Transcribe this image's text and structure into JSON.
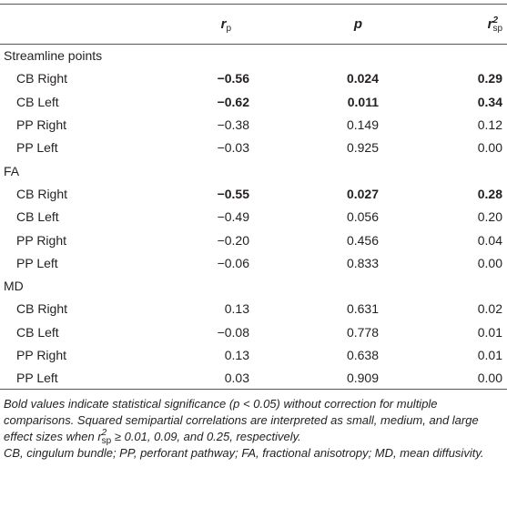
{
  "table": {
    "columns": [
      {
        "symbol": "r",
        "sub": "p"
      },
      {
        "symbol": "p"
      },
      {
        "symbol": "r",
        "sup": "2",
        "sub": "sp"
      }
    ],
    "sections": [
      {
        "label": "Streamline points",
        "rows": [
          {
            "label": "CB Right",
            "cells": [
              "−0.56",
              "0.024",
              "0.29"
            ],
            "bold": true
          },
          {
            "label": "CB Left",
            "cells": [
              "−0.62",
              "0.011",
              "0.34"
            ],
            "bold": true
          },
          {
            "label": "PP Right",
            "cells": [
              "−0.38",
              "0.149",
              "0.12"
            ],
            "bold": false
          },
          {
            "label": "PP Left",
            "cells": [
              "−0.03",
              "0.925",
              "0.00"
            ],
            "bold": false
          }
        ]
      },
      {
        "label": "FA",
        "rows": [
          {
            "label": "CB Right",
            "cells": [
              "−0.55",
              "0.027",
              "0.28"
            ],
            "bold": true
          },
          {
            "label": "CB Left",
            "cells": [
              "−0.49",
              "0.056",
              "0.20"
            ],
            "bold": false
          },
          {
            "label": "PP Right",
            "cells": [
              "−0.20",
              "0.456",
              "0.04"
            ],
            "bold": false
          },
          {
            "label": "PP Left",
            "cells": [
              "−0.06",
              "0.833",
              "0.00"
            ],
            "bold": false
          }
        ]
      },
      {
        "label": "MD",
        "rows": [
          {
            "label": "CB Right",
            "cells": [
              "0.13",
              "0.631",
              "0.02"
            ],
            "bold": false
          },
          {
            "label": "CB Left",
            "cells": [
              "−0.08",
              "0.778",
              "0.01"
            ],
            "bold": false
          },
          {
            "label": "PP Right",
            "cells": [
              "0.13",
              "0.638",
              "0.01"
            ],
            "bold": false
          },
          {
            "label": "PP Left",
            "cells": [
              "0.03",
              "0.909",
              "0.00"
            ],
            "bold": false
          }
        ]
      }
    ]
  },
  "footnotes": [
    {
      "before": "Bold values indicate statistical significance (p < 0.05) without correction for multiple comparisons. Squared semipartial correlations are interpreted as small, medium, and large effect sizes when ",
      "symbol": "r",
      "sup": "2",
      "sub": "sp",
      "after": " ≥ 0.01, 0.09, and 0.25, respectively."
    },
    {
      "before": "CB, cingulum bundle; PP, perforant pathway; FA, fractional anisotropy; MD, mean diffusivity."
    }
  ]
}
